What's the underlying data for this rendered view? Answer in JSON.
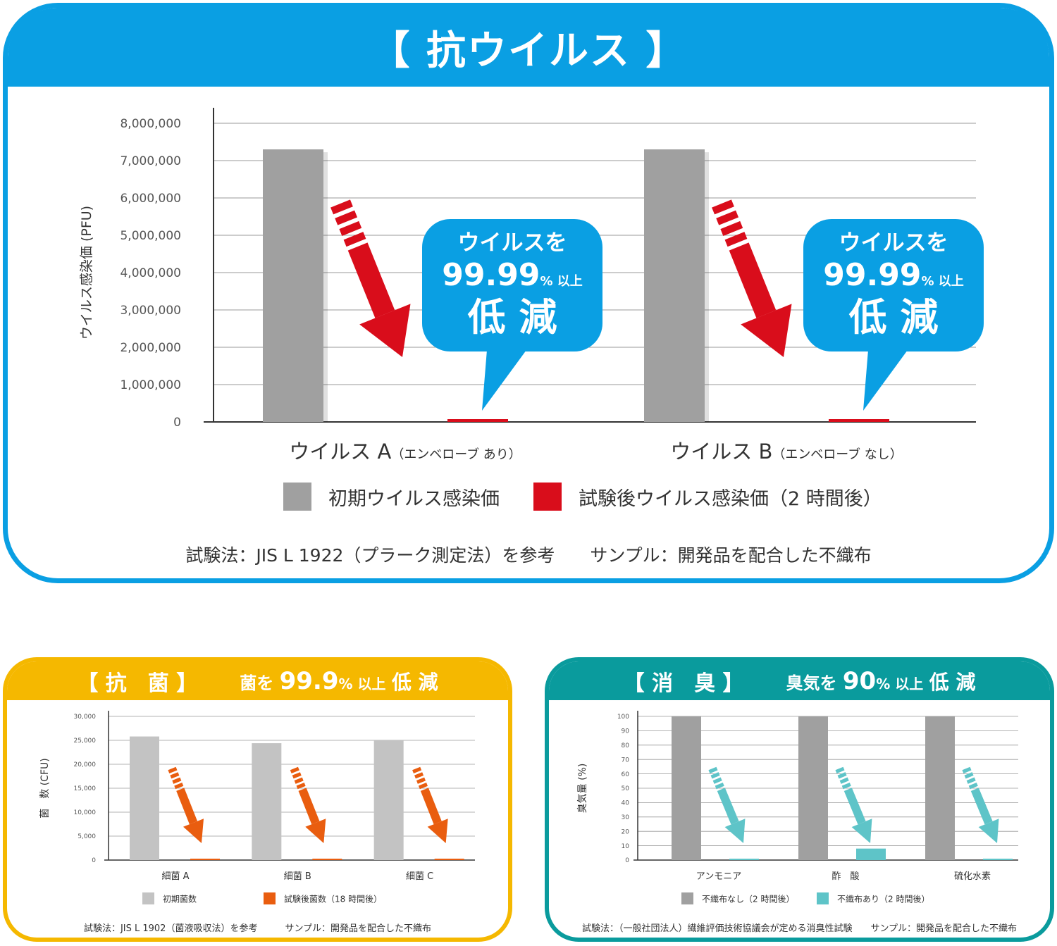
{
  "virus_panel": {
    "title": "【 抗ウイルス 】",
    "footnote": "試験法：JIS L 1922（プラーク測定法）を参考　　サンプル：開発品を配合した不織布",
    "callout": {
      "line1": "ウイルスを",
      "percent": "99.99",
      "unit": "% 以上",
      "line3": "低 減"
    }
  },
  "bacteria_panel": {
    "title": "【 抗　菌 】",
    "subtitle_pre": "菌を",
    "subtitle_num": "99.9",
    "subtitle_unit": "% 以上",
    "subtitle_post": "低 減",
    "footnote": "試験法：JIS L 1902（菌液吸収法）を参考　　　サンプル：開発品を配合した不織布"
  },
  "odor_panel": {
    "title": "【 消　臭 】",
    "subtitle_pre": "臭気を",
    "subtitle_num": "90",
    "subtitle_unit": "% 以上",
    "subtitle_post": "低 減",
    "footnote": "試験法：（一般社団法人）繊維評価技術協議会が定める消臭性試験　　サンプル：開発品を配合した不織布"
  },
  "colors": {
    "virus_frame": "#0a9fe3",
    "bacteria_frame": "#f5b800",
    "odor_frame": "#0a9b9d",
    "gray_bar": "#a0a0a0",
    "light_gray_bar": "#c3c3c3",
    "red": "#d90d1b",
    "orange": "#e95d0f",
    "teal": "#5ec4c8",
    "callout_blue": "#0a9fe3"
  },
  "chart_data": [
    {
      "type": "bar",
      "title": "",
      "ylabel": "ウイルス感染価 (PFU)",
      "ylim": [
        0,
        8000000
      ],
      "yticks": [
        0,
        1000000,
        2000000,
        3000000,
        4000000,
        5000000,
        6000000,
        7000000,
        8000000
      ],
      "ytick_labels": [
        "0",
        "1,000,000",
        "2,000,000",
        "3,000,000",
        "4,000,000",
        "5,000,000",
        "6,000,000",
        "7,000,000",
        "8,000,000"
      ],
      "categories": [
        {
          "main": "ウイルス A",
          "sub": "（エンベローブ あり）"
        },
        {
          "main": "ウイルス B",
          "sub": "（エンベローブ なし）"
        }
      ],
      "series": [
        {
          "name": "初期ウイルス感染価",
          "color": "#a0a0a0",
          "values": [
            7300000,
            7300000
          ]
        },
        {
          "name": "試験後ウイルス感染価（2 時間後）",
          "color": "#d90d1b",
          "values": [
            70,
            70
          ]
        }
      ],
      "grid": true,
      "legend": "bottom"
    },
    {
      "type": "bar",
      "title": "",
      "ylabel": "菌　数 (CFU)",
      "ylim": [
        0,
        30000
      ],
      "yticks": [
        0,
        5000,
        10000,
        15000,
        20000,
        25000,
        30000
      ],
      "ytick_labels": [
        "0",
        "5,000",
        "10,000",
        "15,000",
        "20,000",
        "25,000",
        "30,000"
      ],
      "categories": [
        "細菌 A",
        "細菌 B",
        "細菌 C"
      ],
      "series": [
        {
          "name": "初期菌数",
          "color": "#c3c3c3",
          "values": [
            25800,
            24400,
            25000
          ]
        },
        {
          "name": "試験後菌数（18 時間後）",
          "color": "#e95d0f",
          "values": [
            20,
            20,
            20
          ]
        }
      ],
      "grid": true,
      "legend": "bottom"
    },
    {
      "type": "bar",
      "title": "",
      "ylabel": "臭気量 (%)",
      "ylim": [
        0,
        100
      ],
      "yticks": [
        0,
        10,
        20,
        30,
        40,
        50,
        60,
        70,
        80,
        90,
        100
      ],
      "ytick_labels": [
        "0",
        "10",
        "20",
        "30",
        "40",
        "50",
        "60",
        "70",
        "80",
        "90",
        "100"
      ],
      "categories": [
        "アンモニア",
        "酢　酸",
        "硫化水素"
      ],
      "series": [
        {
          "name": "不織布なし（2 時間後）",
          "color": "#a0a0a0",
          "values": [
            100,
            100,
            100
          ]
        },
        {
          "name": "不織布あり（2 時間後）",
          "color": "#5ec4c8",
          "values": [
            0.5,
            8,
            0.5
          ]
        }
      ],
      "grid": true,
      "legend": "bottom"
    }
  ]
}
